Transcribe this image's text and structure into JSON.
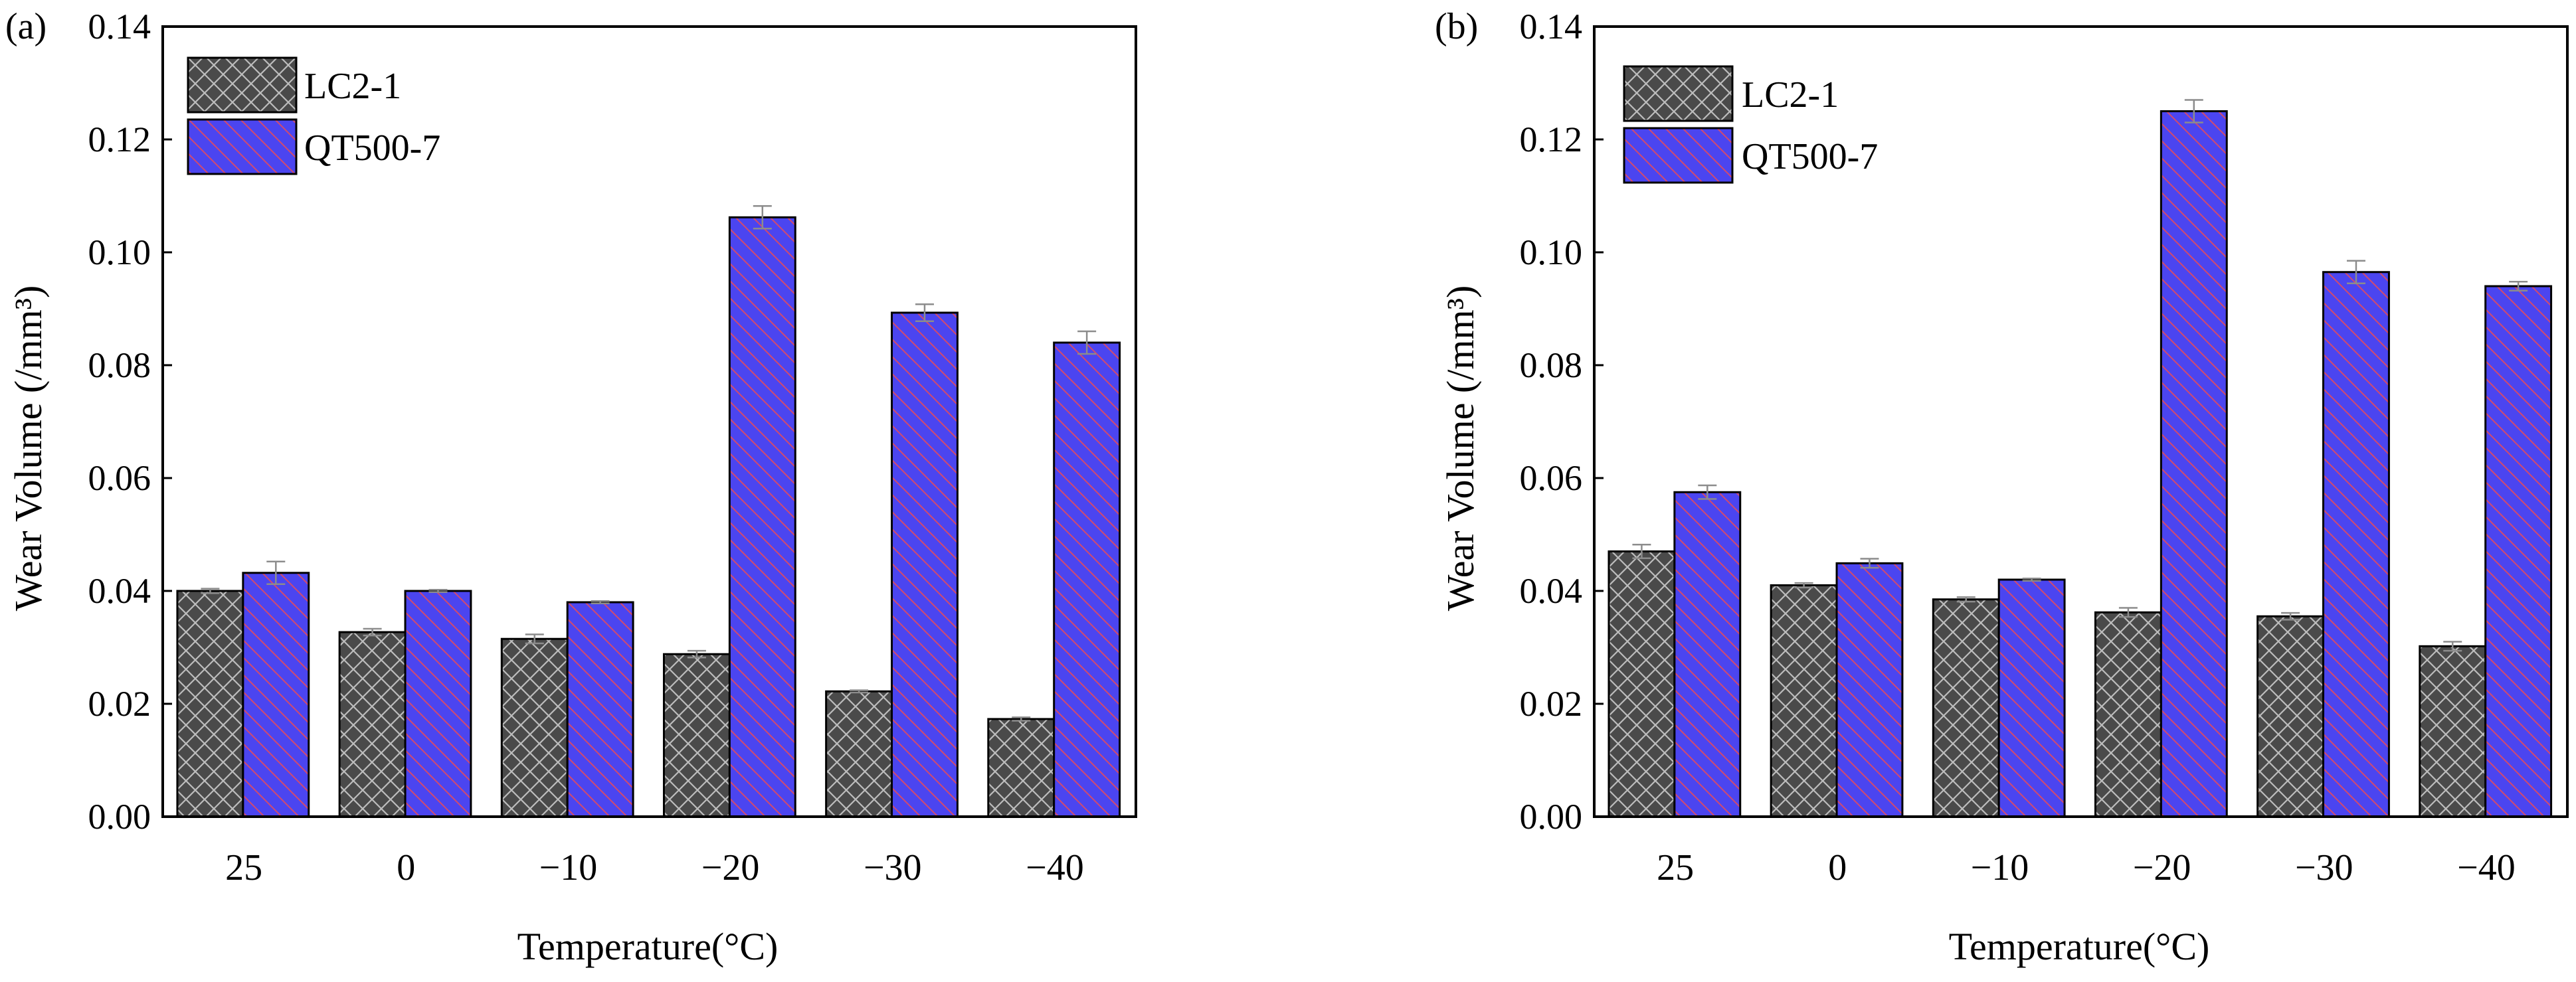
{
  "colors": {
    "lc_fill": "#4a4a4a",
    "lc_hatch": "#bdbdbd",
    "qt_fill": "#4b45f0",
    "qt_hatch": "#d24a6e",
    "error_bar": "#8c8c8c",
    "axis": "#000000"
  },
  "chart_data": [
    {
      "type": "bar",
      "panel_label": "(a)",
      "categories": [
        "25",
        "0",
        "−10",
        "−20",
        "−30",
        "−40"
      ],
      "series": [
        {
          "name": "LC2-1",
          "values": [
            0.04,
            0.0327,
            0.0315,
            0.0288,
            0.0222,
            0.0173
          ],
          "errors": [
            0.0004,
            0.0006,
            0.0008,
            0.0006,
            0.0002,
            0.0003
          ]
        },
        {
          "name": "QT500-7",
          "values": [
            0.0432,
            0.04,
            0.038,
            0.1062,
            0.0893,
            0.084
          ],
          "errors": [
            0.002,
            0.0002,
            0.0002,
            0.002,
            0.0015,
            0.002
          ]
        }
      ],
      "xlabel": "Temperature(°C)",
      "ylabel": "Wear Volume (/mm³)",
      "ylim": [
        0,
        0.14
      ],
      "yticks": [
        "0.00",
        "0.02",
        "0.04",
        "0.06",
        "0.08",
        "0.10",
        "0.12",
        "0.14"
      ],
      "legend_position": "top-left"
    },
    {
      "type": "bar",
      "panel_label": "(b)",
      "categories": [
        "25",
        "0",
        "−10",
        "−20",
        "−30",
        "−40"
      ],
      "series": [
        {
          "name": "LC2-1",
          "values": [
            0.047,
            0.041,
            0.0385,
            0.0362,
            0.0355,
            0.0302
          ],
          "errors": [
            0.0012,
            0.0004,
            0.0004,
            0.0008,
            0.0006,
            0.0008
          ]
        },
        {
          "name": "QT500-7",
          "values": [
            0.0575,
            0.0449,
            0.042,
            0.125,
            0.0965,
            0.094
          ],
          "errors": [
            0.0012,
            0.0008,
            0.0002,
            0.002,
            0.002,
            0.0008
          ]
        }
      ],
      "xlabel": "Temperature(°C)",
      "ylabel": "Wear Volume (/mm³)",
      "ylim": [
        0,
        0.14
      ],
      "yticks": [
        "0.00",
        "0.02",
        "0.04",
        "0.06",
        "0.08",
        "0.10",
        "0.12",
        "0.14"
      ],
      "legend_position": "top-left"
    }
  ]
}
